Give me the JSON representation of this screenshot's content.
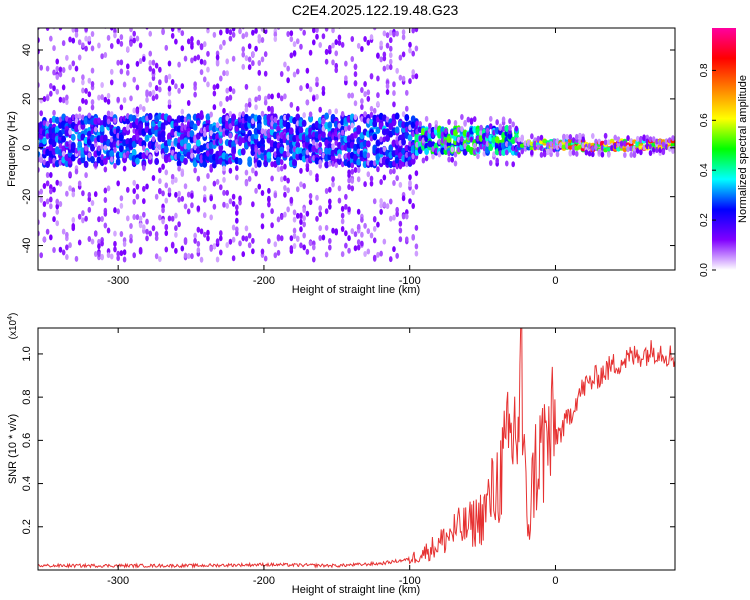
{
  "title": "C2E4.2025.122.19.48.G23",
  "colors": {
    "line": "#e63232",
    "frame": "#000000"
  },
  "colorbar": {
    "label": "Normalized spectral amplitude",
    "ticks": [
      "0.0",
      "0.2",
      "0.4",
      "0.6",
      "0.8"
    ],
    "stops": [
      "#ffffff",
      "#8000ff",
      "#0000ff",
      "#00ffff",
      "#00ff00",
      "#ffff00",
      "#ff8000",
      "#ff0000",
      "#ff00a0"
    ]
  },
  "chart_data": [
    {
      "type": "heatmap",
      "xlabel": "Height of straight line (km)",
      "ylabel": "Frequency (Hz)",
      "xlim": [
        -355,
        82
      ],
      "ylim": [
        -50,
        49
      ],
      "xticks": [
        "-300",
        "-200",
        "-100",
        "0"
      ],
      "yticks": [
        "-40",
        "-20",
        "0",
        "20",
        "40"
      ],
      "xtick_values": [
        -300,
        -200,
        -100,
        0
      ],
      "ytick_values": [
        -40,
        -20,
        0,
        20,
        40
      ],
      "scale": "normalized spectral amplitude 0-1",
      "bands": [
        {
          "x": [
            -355,
            -95
          ],
          "center_hz": 3,
          "core_halfwidth_hz": 10,
          "scatter_extent_hz": 49,
          "peak_amplitude": 0.35
        },
        {
          "x": [
            -95,
            -25
          ],
          "center_hz": 3,
          "core_halfwidth_hz": 5,
          "scatter_extent_hz": 10,
          "peak_amplitude": 0.55
        },
        {
          "x": [
            -25,
            82
          ],
          "center_hz": 1,
          "core_halfwidth_hz": 2,
          "scatter_extent_hz": 4,
          "peak_amplitude": 0.95
        }
      ]
    },
    {
      "type": "line",
      "xlabel": "Height of straight line (km)",
      "ylabel": "SNR (10 * v/v)",
      "multiplier": "(x10",
      "multiplier_exp": "4",
      "multiplier_close": ")",
      "xlim": [
        -355,
        82
      ],
      "ylim": [
        0,
        1.12
      ],
      "xticks": [
        "-300",
        "-200",
        "-100",
        "0"
      ],
      "yticks": [
        "0.2",
        "0.4",
        "0.6",
        "0.8",
        "1.0"
      ],
      "xtick_values": [
        -300,
        -200,
        -100,
        0
      ],
      "ytick_values": [
        0.2,
        0.4,
        0.6,
        0.8,
        1.0
      ],
      "series": [
        {
          "x": [
            -355,
            -300,
            -250,
            -200,
            -150,
            -120,
            -100,
            -90,
            -80,
            -70,
            -60,
            -50,
            -40,
            -35,
            -30,
            -25,
            -24,
            -22,
            -20,
            -18,
            -15,
            -10,
            -5,
            0,
            5,
            10,
            15,
            20,
            30,
            40,
            50,
            60,
            70,
            82
          ],
          "values": [
            0.02,
            0.02,
            0.02,
            0.025,
            0.02,
            0.03,
            0.05,
            0.08,
            0.12,
            0.18,
            0.2,
            0.25,
            0.4,
            0.5,
            0.6,
            0.7,
            1.15,
            0.5,
            0.3,
            0.2,
            0.45,
            0.55,
            0.6,
            0.62,
            0.65,
            0.72,
            0.8,
            0.85,
            0.9,
            0.95,
            0.98,
            1.0,
            1.02,
            0.98
          ]
        }
      ]
    }
  ]
}
